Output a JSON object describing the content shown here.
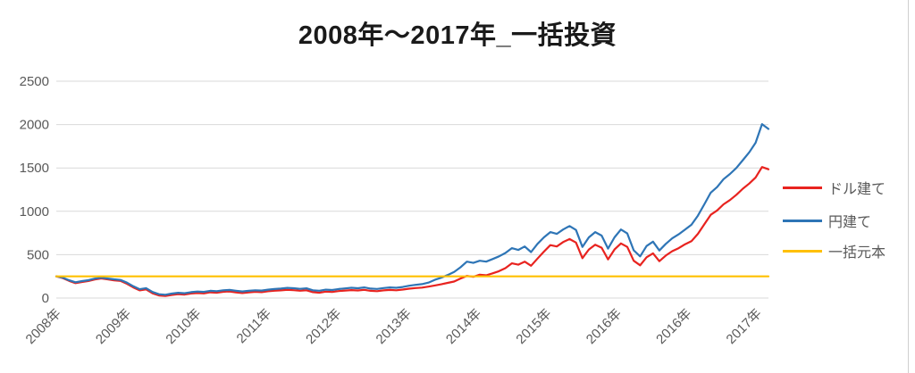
{
  "title": "2008年～2017年_一括投資",
  "chart_data": {
    "type": "line",
    "title": "2008年～2017年_一括投資",
    "xlabel": "",
    "ylabel": "",
    "ylim": [
      0,
      2500
    ],
    "y_ticks": [
      0,
      500,
      1000,
      1500,
      2000,
      2500
    ],
    "x_tick_labels": [
      "2008年",
      "2009年",
      "2010年",
      "2011年",
      "2012年",
      "2013年",
      "2014年",
      "2015年",
      "2016年",
      "2016年",
      "2017年"
    ],
    "grid": "horizontal",
    "grid_color": "#d9d9d9",
    "axis_label_color": "#595959",
    "legend_position": "right",
    "series": [
      {
        "name": "ドル建て",
        "color": "#e8231f",
        "values": [
          250,
          230,
          198,
          172,
          185,
          196,
          214,
          226,
          215,
          205,
          198,
          165,
          122,
          88,
          100,
          55,
          30,
          24,
          36,
          45,
          40,
          52,
          58,
          54,
          66,
          62,
          72,
          76,
          66,
          58,
          65,
          72,
          68,
          78,
          84,
          88,
          95,
          91,
          84,
          90,
          68,
          62,
          74,
          70,
          80,
          86,
          92,
          87,
          95,
          83,
          79,
          88,
          94,
          90,
          98,
          108,
          115,
          120,
          132,
          145,
          158,
          175,
          190,
          225,
          255,
          245,
          270,
          262,
          285,
          310,
          345,
          400,
          385,
          420,
          372,
          455,
          535,
          610,
          595,
          645,
          680,
          640,
          460,
          560,
          615,
          580,
          445,
          560,
          630,
          590,
          430,
          378,
          470,
          515,
          425,
          490,
          540,
          575,
          620,
          655,
          740,
          850,
          960,
          1010,
          1080,
          1130,
          1190,
          1260,
          1320,
          1390,
          1510,
          1485
        ]
      },
      {
        "name": "円建て",
        "color": "#2e75b6",
        "values": [
          250,
          236,
          205,
          182,
          195,
          206,
          224,
          235,
          225,
          216,
          209,
          178,
          136,
          102,
          114,
          70,
          44,
          38,
          51,
          61,
          56,
          68,
          75,
          71,
          83,
          79,
          90,
          94,
          84,
          76,
          83,
          90,
          86,
          97,
          104,
          109,
          117,
          113,
          106,
          112,
          90,
          84,
          97,
          93,
          104,
          111,
          118,
          113,
          122,
          109,
          105,
          115,
          122,
          118,
          128,
          142,
          152,
          160,
          178,
          210,
          235,
          265,
          300,
          355,
          420,
          405,
          430,
          420,
          450,
          480,
          520,
          575,
          555,
          595,
          530,
          625,
          700,
          760,
          740,
          790,
          830,
          785,
          590,
          700,
          760,
          720,
          570,
          700,
          790,
          745,
          550,
          480,
          600,
          650,
          548,
          625,
          688,
          735,
          790,
          845,
          950,
          1080,
          1215,
          1280,
          1370,
          1430,
          1500,
          1590,
          1680,
          1790,
          2005,
          1950
        ]
      },
      {
        "name": "一括元本",
        "color": "#ffc000",
        "constant_value": 250
      }
    ]
  }
}
